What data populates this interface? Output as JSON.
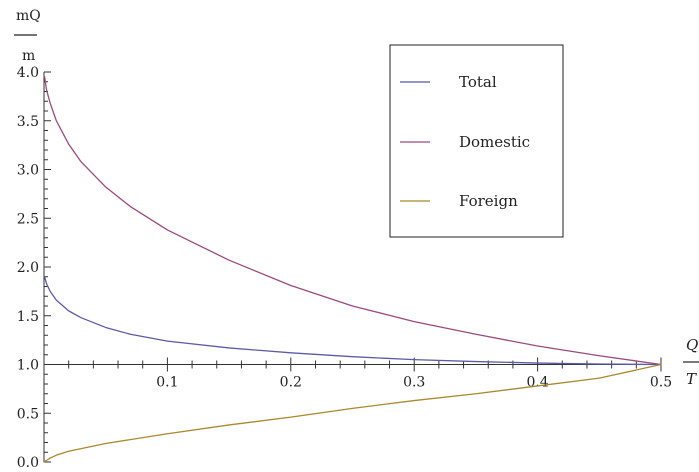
{
  "chart_data": {
    "type": "line",
    "ylabel_numerator": "mQ",
    "ylabel_denominator": "m",
    "xlabel_numerator": "Q",
    "xlabel_denominator": "T",
    "xlim": [
      0,
      0.5
    ],
    "ylim": [
      0,
      4.0
    ],
    "x_axis_crosses_y_at": 1.0,
    "x_ticks": [
      0.1,
      0.2,
      0.3,
      0.4,
      0.5
    ],
    "x_tick_labels": [
      "0.1",
      "0.2",
      "0.3",
      "0.4",
      "0.5"
    ],
    "y_ticks": [
      0.0,
      0.5,
      1.0,
      1.5,
      2.0,
      2.5,
      3.0,
      3.5,
      4.0
    ],
    "y_tick_labels": [
      "0.0",
      "0.5",
      "1.0",
      "1.5",
      "2.0",
      "2.5",
      "3.0",
      "3.5",
      "4.0"
    ],
    "grid": false,
    "legend_position": "top-right",
    "series": [
      {
        "name": "Total",
        "color": "#5b5ba8",
        "x": [
          0.0005,
          0.002,
          0.005,
          0.01,
          0.02,
          0.03,
          0.05,
          0.07,
          0.1,
          0.15,
          0.2,
          0.25,
          0.3,
          0.35,
          0.4,
          0.45,
          0.5
        ],
        "y": [
          1.9,
          1.83,
          1.75,
          1.66,
          1.55,
          1.48,
          1.38,
          1.31,
          1.24,
          1.17,
          1.12,
          1.08,
          1.05,
          1.03,
          1.015,
          1.005,
          1.0
        ]
      },
      {
        "name": "Domestic",
        "color": "#9b4a7e",
        "x": [
          0.0005,
          0.002,
          0.005,
          0.01,
          0.02,
          0.03,
          0.05,
          0.07,
          0.1,
          0.15,
          0.2,
          0.25,
          0.3,
          0.35,
          0.4,
          0.45,
          0.5
        ],
        "y": [
          3.95,
          3.82,
          3.68,
          3.5,
          3.26,
          3.08,
          2.82,
          2.62,
          2.38,
          2.07,
          1.81,
          1.6,
          1.44,
          1.31,
          1.19,
          1.09,
          1.0
        ]
      },
      {
        "name": "Foreign",
        "color": "#a8892f",
        "x": [
          0.0,
          0.005,
          0.01,
          0.02,
          0.05,
          0.1,
          0.15,
          0.2,
          0.25,
          0.3,
          0.35,
          0.4,
          0.45,
          0.5
        ],
        "y": [
          0.0,
          0.04,
          0.07,
          0.11,
          0.19,
          0.29,
          0.38,
          0.46,
          0.55,
          0.63,
          0.7,
          0.78,
          0.86,
          1.0
        ]
      }
    ]
  }
}
